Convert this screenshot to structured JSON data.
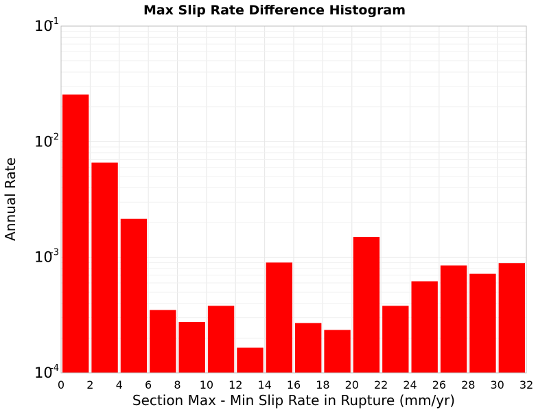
{
  "chart_data": {
    "type": "bar",
    "title": "Max Slip Rate Difference Histogram",
    "xlabel": "Section Max - Min Slip Rate in Rupture (mm/yr)",
    "ylabel": "Annual Rate",
    "y_scale": "log",
    "xlim": [
      0,
      32
    ],
    "ylim": [
      0.0001,
      0.1
    ],
    "x_ticks": [
      "0",
      "2",
      "4",
      "6",
      "8",
      "10",
      "12",
      "14",
      "16",
      "18",
      "20",
      "22",
      "24",
      "26",
      "28",
      "30",
      "32"
    ],
    "y_ticks": [
      {
        "base": "10",
        "exp": "-1"
      },
      {
        "base": "10",
        "exp": "-2"
      },
      {
        "base": "10",
        "exp": "-3"
      },
      {
        "base": "10",
        "exp": "-4"
      }
    ],
    "grid": true,
    "bin_width": 2,
    "bars": [
      {
        "x": 1,
        "value": 0.0256
      },
      {
        "x": 3,
        "value": 0.0066
      },
      {
        "x": 5,
        "value": 0.00215
      },
      {
        "x": 7,
        "value": 0.00035
      },
      {
        "x": 9,
        "value": 0.000275
      },
      {
        "x": 11,
        "value": 0.00038
      },
      {
        "x": 13,
        "value": 0.000165
      },
      {
        "x": 15,
        "value": 0.0009
      },
      {
        "x": 17,
        "value": 0.00027
      },
      {
        "x": 19,
        "value": 0.000235
      },
      {
        "x": 21,
        "value": 0.0015
      },
      {
        "x": 23,
        "value": 0.00038
      },
      {
        "x": 25,
        "value": 0.00062
      },
      {
        "x": 27,
        "value": 0.00085
      },
      {
        "x": 29,
        "value": 0.00072
      },
      {
        "x": 31,
        "value": 0.00089
      }
    ],
    "colors": {
      "bar": "#ff0000"
    }
  }
}
